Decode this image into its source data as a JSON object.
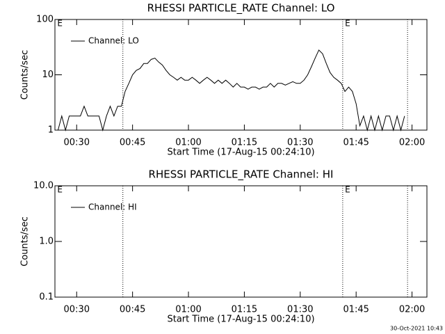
{
  "chart_data": [
    {
      "type": "line",
      "title": "RHESSI PARTICLE_RATE Channel: LO",
      "xlabel": "Start Time (17-Aug-15 00:24:10)",
      "ylabel": "Counts/sec",
      "log_y": true,
      "legend": "upper left",
      "xlim": [
        24.1667,
        124
      ],
      "ylim": [
        1,
        100
      ],
      "xticks": [
        {
          "value": 30,
          "label": "00:30"
        },
        {
          "value": 45,
          "label": "00:45"
        },
        {
          "value": 60,
          "label": "01:00"
        },
        {
          "value": 75,
          "label": "01:15"
        },
        {
          "value": 90,
          "label": "01:30"
        },
        {
          "value": 105,
          "label": "01:45"
        },
        {
          "value": 120,
          "label": "02:00"
        }
      ],
      "yticks": [
        1,
        10,
        100
      ],
      "vlines": [
        42.4,
        101.4,
        118.8
      ],
      "annotations": [
        {
          "text": "E",
          "x": 24.8
        },
        {
          "text": "E",
          "x": 102.0
        }
      ],
      "x": [
        25,
        26,
        27,
        28,
        29,
        30,
        31,
        32,
        33,
        34,
        35,
        36,
        37,
        38,
        39,
        40,
        41,
        42,
        43,
        44,
        45,
        46,
        47,
        48,
        49,
        50,
        51,
        52,
        53,
        54,
        55,
        56,
        57,
        58,
        59,
        60,
        61,
        62,
        63,
        64,
        65,
        66,
        67,
        68,
        69,
        70,
        71,
        72,
        73,
        74,
        75,
        76,
        77,
        78,
        79,
        80,
        81,
        82,
        83,
        84,
        85,
        86,
        87,
        88,
        89,
        90,
        91,
        92,
        93,
        94,
        95,
        96,
        97,
        98,
        99,
        100,
        101,
        102,
        103,
        104,
        105,
        106,
        107,
        108,
        109,
        110,
        111,
        112,
        113,
        114,
        115,
        116,
        117,
        118
      ],
      "series": [
        {
          "name": "Channel: LO",
          "color": "#000000",
          "values": [
            1,
            1.8,
            1,
            1.8,
            1.8,
            1.8,
            1.8,
            2.7,
            1.8,
            1.8,
            1.8,
            1.8,
            1,
            1.8,
            2.7,
            1.8,
            2.7,
            2.7,
            5,
            7,
            10,
            12,
            13,
            16,
            16,
            19,
            20,
            17,
            15,
            12,
            10,
            9,
            8,
            9,
            8,
            8,
            9,
            8,
            7,
            8,
            9,
            8,
            7,
            8,
            7,
            8,
            7,
            6,
            7,
            6,
            6,
            5.5,
            6,
            6,
            5.5,
            6,
            6,
            7,
            6,
            7,
            7,
            6.5,
            7,
            7.5,
            7,
            7,
            8,
            10,
            14,
            20,
            28,
            24,
            16,
            11,
            9,
            8,
            7,
            5,
            6,
            5,
            3,
            1.2,
            1.8,
            1,
            1.8,
            1,
            1.8,
            1,
            1.8,
            1.8,
            1,
            1.8,
            1,
            1.8
          ]
        }
      ]
    },
    {
      "type": "line",
      "title": "RHESSI PARTICLE_RATE Channel: HI",
      "xlabel": "Start Time (17-Aug-15 00:24:10)",
      "ylabel": "Counts/sec",
      "log_y": true,
      "legend": "upper left",
      "xlim": [
        24.1667,
        124
      ],
      "ylim": [
        0.1,
        10
      ],
      "xticks": [
        {
          "value": 30,
          "label": "00:30"
        },
        {
          "value": 45,
          "label": "00:45"
        },
        {
          "value": 60,
          "label": "01:00"
        },
        {
          "value": 75,
          "label": "01:15"
        },
        {
          "value": 90,
          "label": "01:30"
        },
        {
          "value": 105,
          "label": "01:45"
        },
        {
          "value": 120,
          "label": "02:00"
        }
      ],
      "yticks": [
        0.1,
        {
          "value": 1,
          "label": "1.0"
        },
        {
          "value": 10,
          "label": "10.0"
        }
      ],
      "vlines": [
        42.4,
        101.4,
        118.8
      ],
      "annotations": [
        {
          "text": "E",
          "x": 24.8
        },
        {
          "text": "E",
          "x": 102.0
        }
      ],
      "x": [],
      "series": [
        {
          "name": "Channel: HI",
          "color": "#000000",
          "values": []
        }
      ]
    }
  ],
  "timestamp": "30-Oct-2021 10:43"
}
